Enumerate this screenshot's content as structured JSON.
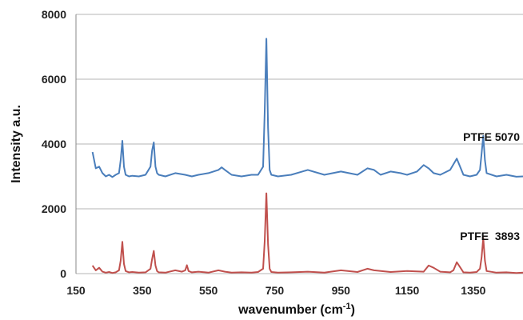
{
  "chart_data": {
    "type": "line",
    "xlabel": "wavenumber (cm",
    "xlabel_sup": "-1",
    "xlabel_close": ")",
    "ylabel": "Intensity a.u.",
    "xlim": [
      150,
      1500
    ],
    "ylim": [
      0,
      8000
    ],
    "xticks": [
      150,
      350,
      550,
      750,
      950,
      1150,
      1350
    ],
    "yticks": [
      0,
      2000,
      4000,
      6000,
      8000
    ],
    "grid": "horizontal",
    "series": [
      {
        "name": "PTFE 5070",
        "color": "#4a7ebb",
        "x": [
          200,
          210,
          220,
          230,
          240,
          250,
          260,
          270,
          280,
          285,
          290,
          295,
          300,
          310,
          320,
          340,
          360,
          375,
          380,
          385,
          390,
          395,
          400,
          420,
          450,
          480,
          500,
          520,
          550,
          580,
          590,
          600,
          620,
          650,
          680,
          700,
          715,
          720,
          725,
          730,
          735,
          740,
          760,
          800,
          850,
          900,
          950,
          1000,
          1030,
          1050,
          1070,
          1100,
          1130,
          1150,
          1180,
          1200,
          1215,
          1230,
          1250,
          1280,
          1300,
          1310,
          1320,
          1340,
          1360,
          1370,
          1375,
          1380,
          1385,
          1390,
          1420,
          1450,
          1480,
          1500
        ],
        "values": [
          3750,
          3250,
          3300,
          3100,
          3000,
          3050,
          2980,
          3050,
          3100,
          3500,
          4100,
          3300,
          3050,
          3000,
          3020,
          3000,
          3050,
          3300,
          3800,
          4050,
          3300,
          3100,
          3050,
          3000,
          3100,
          3050,
          3000,
          3050,
          3100,
          3200,
          3280,
          3200,
          3050,
          3000,
          3050,
          3050,
          3300,
          5000,
          7250,
          4500,
          3200,
          3050,
          3000,
          3050,
          3200,
          3050,
          3150,
          3050,
          3250,
          3200,
          3050,
          3150,
          3100,
          3050,
          3150,
          3350,
          3250,
          3100,
          3050,
          3200,
          3550,
          3300,
          3050,
          3000,
          3050,
          3200,
          3700,
          4250,
          3500,
          3100,
          3000,
          3050,
          2990,
          3000
        ]
      },
      {
        "name": "PTFE  3893",
        "color": "#c0504d",
        "x": [
          200,
          210,
          220,
          230,
          240,
          250,
          260,
          270,
          280,
          285,
          290,
          295,
          300,
          310,
          320,
          340,
          360,
          375,
          380,
          385,
          390,
          395,
          400,
          420,
          450,
          470,
          480,
          485,
          490,
          500,
          520,
          550,
          580,
          600,
          620,
          650,
          680,
          700,
          715,
          720,
          725,
          730,
          735,
          740,
          760,
          800,
          850,
          900,
          950,
          1000,
          1030,
          1050,
          1100,
          1150,
          1200,
          1215,
          1230,
          1250,
          1280,
          1290,
          1300,
          1310,
          1320,
          1340,
          1360,
          1370,
          1375,
          1380,
          1385,
          1390,
          1420,
          1450,
          1480,
          1500
        ],
        "values": [
          250,
          100,
          180,
          60,
          30,
          50,
          20,
          40,
          100,
          400,
          980,
          300,
          80,
          40,
          50,
          30,
          40,
          150,
          450,
          700,
          250,
          80,
          40,
          30,
          100,
          60,
          100,
          260,
          80,
          40,
          60,
          30,
          100,
          60,
          30,
          40,
          30,
          50,
          150,
          1000,
          2480,
          900,
          150,
          50,
          30,
          40,
          60,
          30,
          100,
          50,
          150,
          100,
          50,
          80,
          60,
          250,
          180,
          60,
          40,
          100,
          350,
          200,
          40,
          30,
          50,
          150,
          500,
          1100,
          400,
          80,
          30,
          40,
          20,
          30
        ]
      }
    ]
  }
}
